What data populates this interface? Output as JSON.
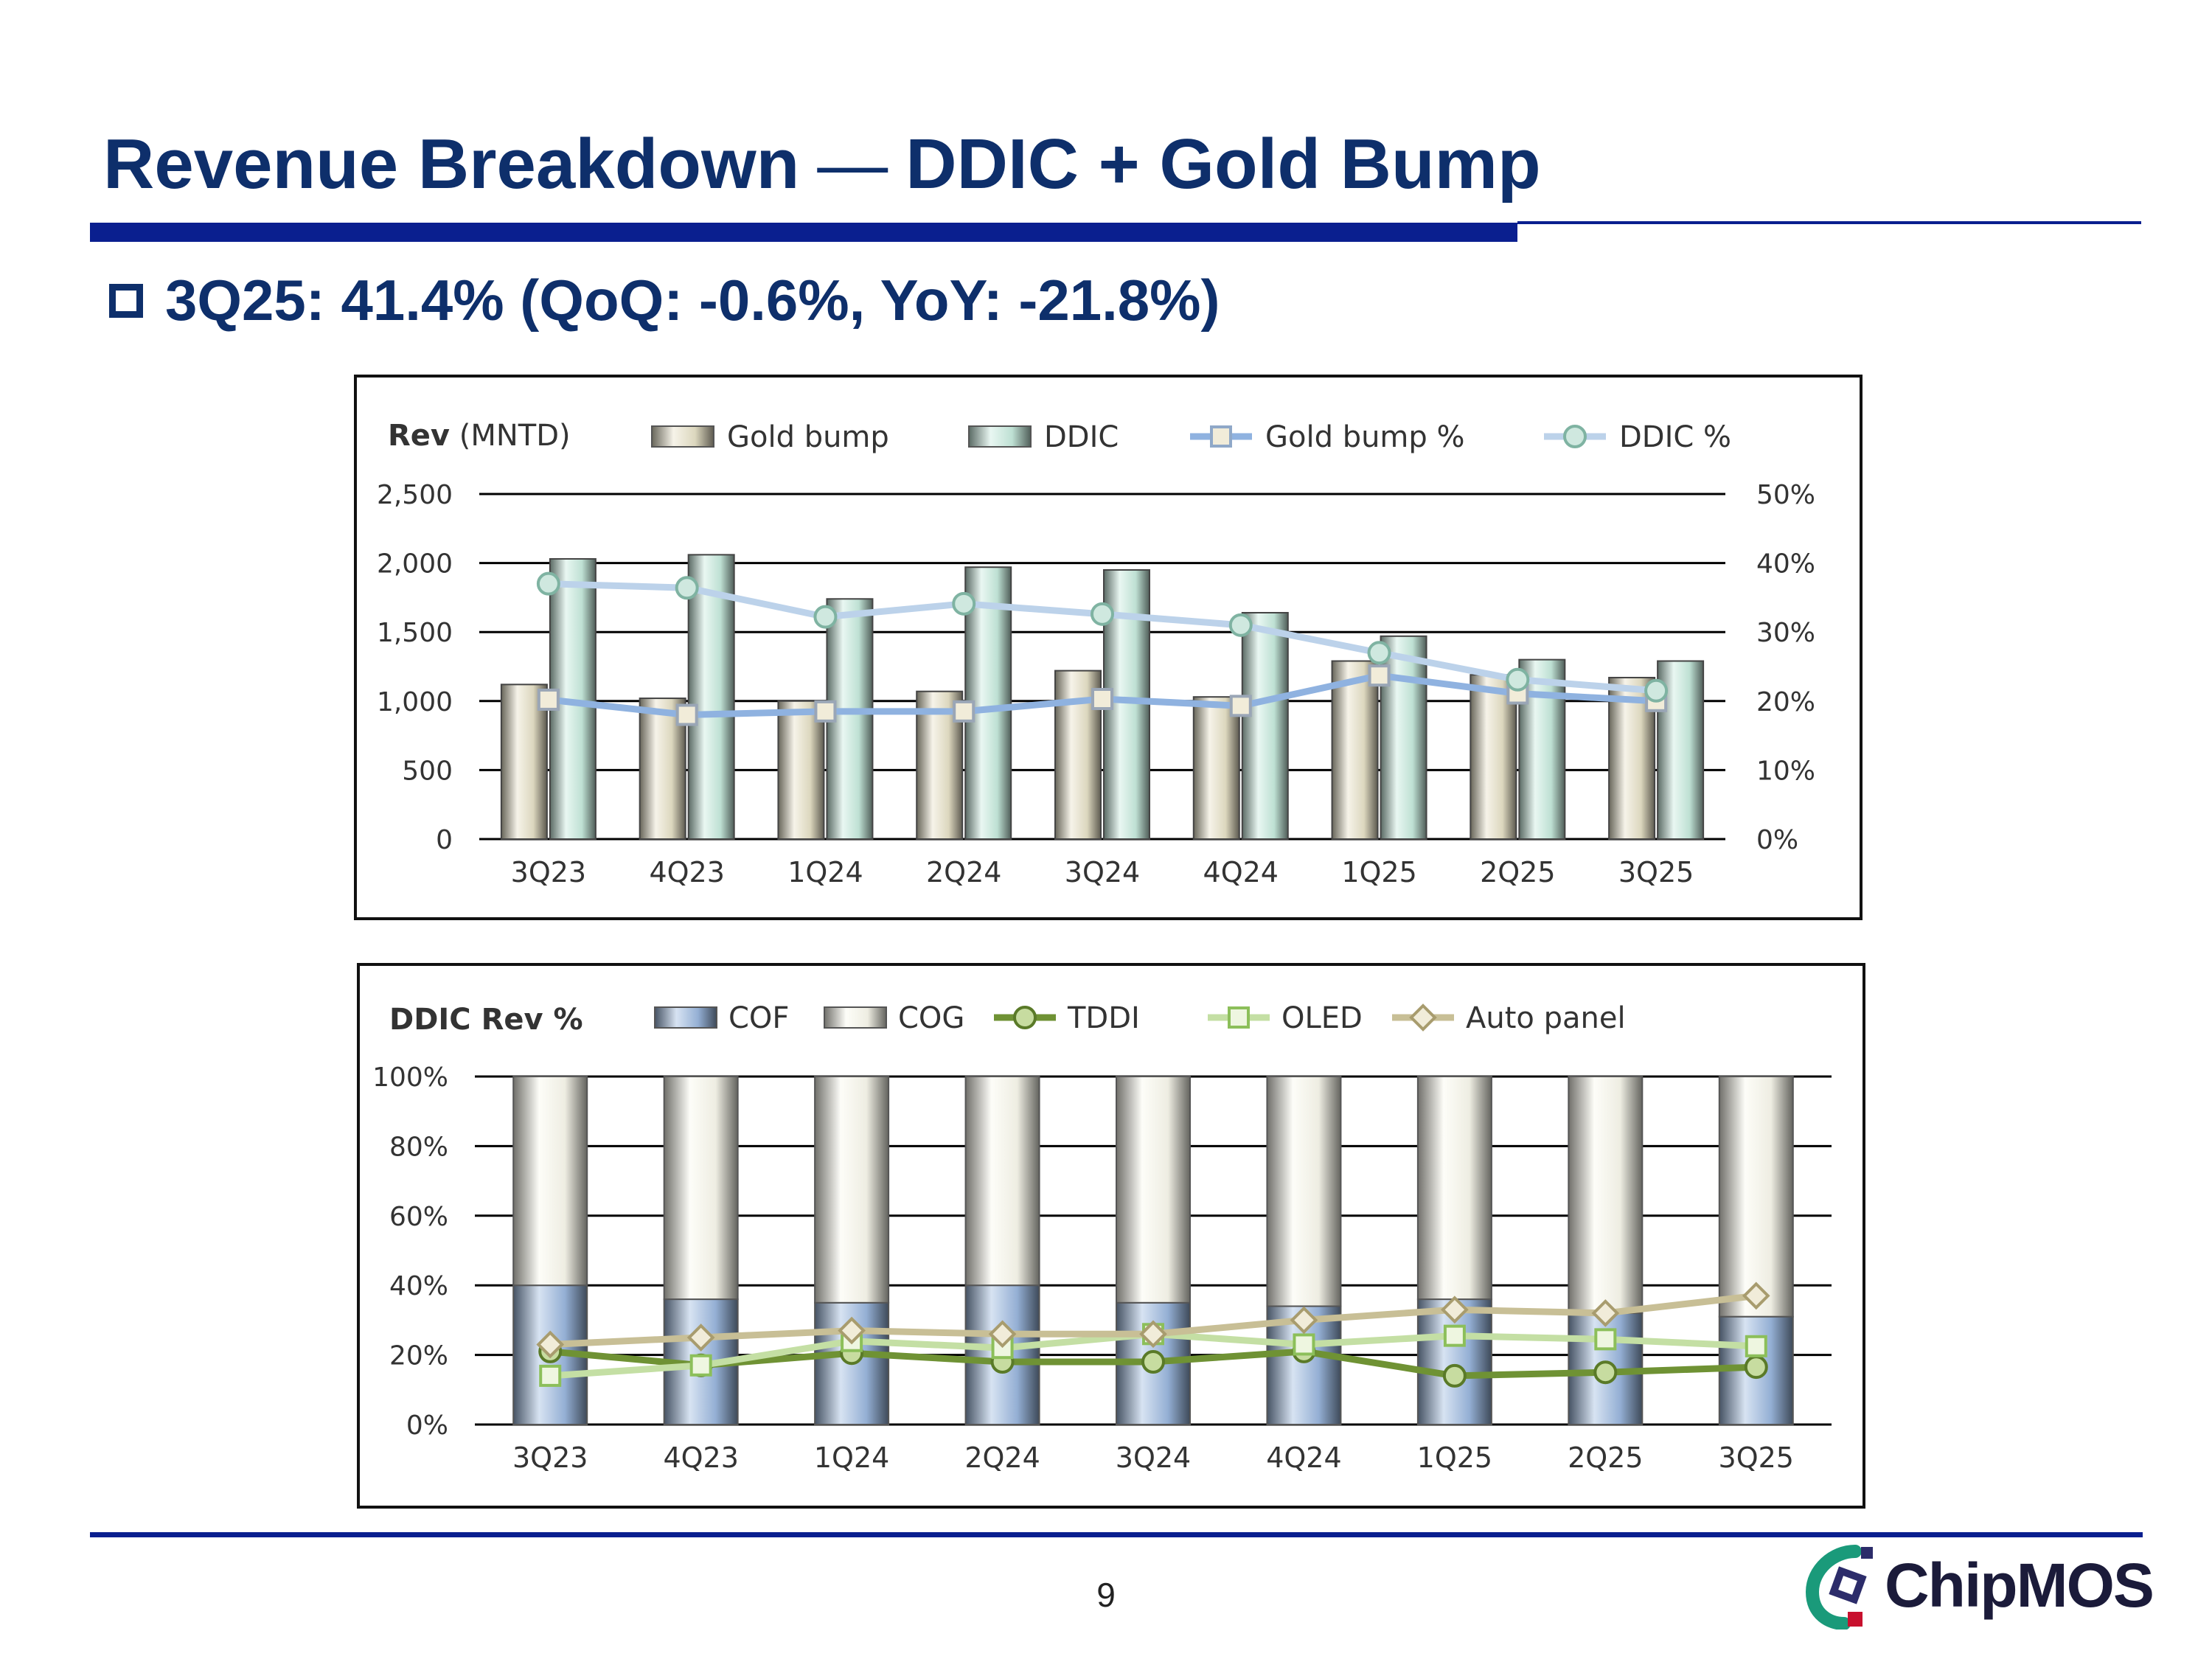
{
  "header": {
    "title_left": "Revenue Breakdown",
    "title_sep": "—",
    "title_right": "DDIC + Gold Bump",
    "bullet": "3Q25: 41.4% (QoQ: -0.6%, YoY: -21.8%)"
  },
  "footer": {
    "page_number": "9",
    "logo_text": "ChipMOS"
  },
  "chart_data": [
    {
      "type": "bar",
      "title_bold": "Rev",
      "title_rest": " (MNTD)",
      "categories": [
        "3Q23",
        "4Q23",
        "1Q24",
        "2Q24",
        "3Q24",
        "4Q24",
        "1Q25",
        "2Q25",
        "3Q25"
      ],
      "y_left": {
        "min": 0,
        "max": 2500,
        "ticks": [
          0,
          500,
          1000,
          1500,
          2000,
          2500
        ],
        "tick_labels": [
          "0",
          "500",
          "1,000",
          "1,500",
          "2,000",
          "2,500"
        ]
      },
      "y_right": {
        "min": 0,
        "max": 50,
        "ticks": [
          0,
          10,
          20,
          30,
          40,
          50
        ],
        "tick_labels": [
          "0%",
          "10%",
          "20%",
          "30%",
          "40%",
          "50%"
        ]
      },
      "series": [
        {
          "name": "Gold bump",
          "kind": "bar",
          "axis": "left",
          "color": "#e8e2c8",
          "values": [
            1120,
            1020,
            1000,
            1070,
            1220,
            1030,
            1290,
            1190,
            1170
          ]
        },
        {
          "name": "DDIC",
          "kind": "bar",
          "axis": "left",
          "color": "#c8ecde",
          "values": [
            2030,
            2060,
            1740,
            1970,
            1950,
            1640,
            1470,
            1300,
            1290
          ]
        },
        {
          "name": "Gold bump %",
          "kind": "line",
          "axis": "right",
          "color": "#8fb2e0",
          "marker": "square",
          "values": [
            20.2,
            18.0,
            18.5,
            18.5,
            20.3,
            19.3,
            23.7,
            21.1,
            20.0
          ]
        },
        {
          "name": "DDIC %",
          "kind": "line",
          "axis": "right",
          "color": "#bcd2ea",
          "marker": "circle",
          "values": [
            37.0,
            36.4,
            32.2,
            34.1,
            32.6,
            31.0,
            27.0,
            23.1,
            21.5
          ]
        }
      ],
      "grid": true,
      "legend": "top"
    },
    {
      "type": "bar",
      "title": "DDIC Rev %",
      "categories": [
        "3Q23",
        "4Q23",
        "1Q24",
        "2Q24",
        "3Q24",
        "4Q24",
        "1Q25",
        "2Q25",
        "3Q25"
      ],
      "y": {
        "min": 0,
        "max": 100,
        "ticks": [
          0,
          20,
          40,
          60,
          80,
          100
        ],
        "tick_labels": [
          "0%",
          "20%",
          "40%",
          "60%",
          "80%",
          "100%"
        ]
      },
      "series": [
        {
          "name": "COF",
          "kind": "stacked-bar",
          "color": "#9cb8df",
          "values": [
            40,
            36,
            35,
            40,
            35,
            34,
            36,
            32,
            31
          ]
        },
        {
          "name": "COG",
          "kind": "stacked-bar",
          "color": "#fbf9ee",
          "values": [
            60,
            64,
            65,
            60,
            65,
            66,
            64,
            68,
            69
          ]
        },
        {
          "name": "TDDI",
          "kind": "line",
          "color": "#6f9234",
          "marker": "circle",
          "values": [
            21,
            17,
            20.5,
            18,
            18,
            21,
            14,
            15,
            16.5
          ]
        },
        {
          "name": "OLED",
          "kind": "line",
          "color": "#c4dfa4",
          "marker": "square",
          "values": [
            14,
            17,
            24,
            22,
            26,
            23,
            25.5,
            24.5,
            22.5
          ]
        },
        {
          "name": "Auto panel",
          "kind": "line",
          "color": "#c8bf96",
          "marker": "diamond",
          "values": [
            23,
            25,
            27,
            26,
            26,
            30,
            33,
            32,
            37
          ]
        }
      ],
      "grid": true,
      "legend": "top"
    }
  ]
}
